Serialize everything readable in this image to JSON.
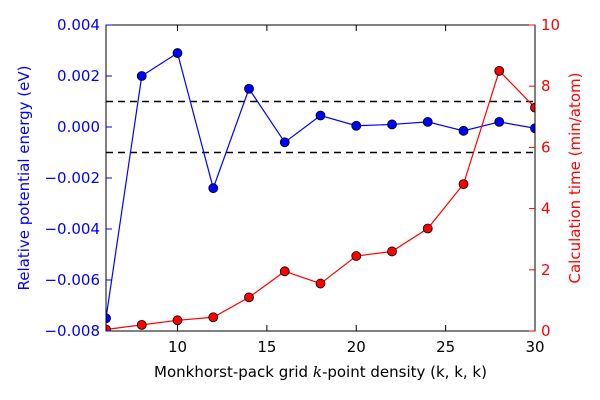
{
  "chart_data": {
    "type": "line",
    "xlabel": "Monkhorst-pack grid k-point density (k, k, k)",
    "xlabel_parts": {
      "before": "Monkhorst-pack grid ",
      "italic": "k",
      "after": "-point density (k, k, k)"
    },
    "ylabel_left": "Relative potential energy (eV)",
    "ylabel_right": "Calculation time (min/atom)",
    "xlim": [
      6,
      30
    ],
    "ylim_left": [
      -0.008,
      0.004
    ],
    "ylim_right": [
      0,
      10
    ],
    "x_ticks": [
      "10",
      "15",
      "20",
      "25",
      "30"
    ],
    "y_ticks_left": [
      "0.004",
      "0.002",
      "0.000",
      "−0.002",
      "−0.004",
      "−0.006",
      "−0.008"
    ],
    "y_ticks_right": [
      "10",
      "8",
      "6",
      "4",
      "2",
      "0"
    ],
    "x_tick_values": [
      10,
      15,
      20,
      25,
      30
    ],
    "y_tick_values_left": [
      0.004,
      0.002,
      0.0,
      -0.002,
      -0.004,
      -0.006,
      -0.008
    ],
    "y_tick_values_right": [
      10,
      8,
      6,
      4,
      2,
      0
    ],
    "reference_lines": [
      0.001,
      -0.001
    ],
    "grid": false,
    "series": [
      {
        "axis": "left",
        "color": "#0000ff",
        "x": [
          6,
          8,
          10,
          12,
          14,
          16,
          18,
          20,
          22,
          24,
          26,
          28,
          30
        ],
        "y": [
          -0.0075,
          0.002,
          0.0029,
          -0.0024,
          0.0015,
          -0.0006,
          0.00045,
          5e-05,
          0.0001,
          0.0002,
          -0.00015,
          0.0002,
          -5e-05
        ]
      },
      {
        "axis": "right",
        "color": "#ff0000",
        "x": [
          6,
          8,
          10,
          12,
          14,
          16,
          18,
          20,
          22,
          24,
          26,
          28,
          30
        ],
        "y": [
          0.05,
          0.2,
          0.35,
          0.45,
          1.1,
          1.95,
          1.55,
          2.45,
          2.6,
          3.35,
          4.8,
          8.5,
          7.3
        ]
      }
    ]
  }
}
